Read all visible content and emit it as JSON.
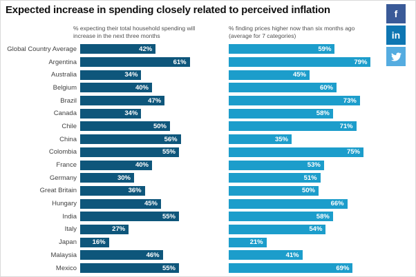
{
  "title": "Expected increase in spending closely related to perceived inflation",
  "left_chart": {
    "subtitle_line1": "% expecting their total household spending will",
    "subtitle_line2": "increase in the next three months"
  },
  "right_chart": {
    "subtitle_line1": "% finding prices higher now than six months ago",
    "subtitle_line2": "(average for 7 categories)"
  },
  "social": [
    {
      "name": "facebook",
      "label": "f",
      "color": "#3a5a98"
    },
    {
      "name": "linkedin",
      "label": "in",
      "color": "#0e76b2"
    },
    {
      "name": "twitter",
      "label": "",
      "color": "#55ace0"
    }
  ],
  "colors": {
    "left_bar": "#0e567b",
    "right_bar": "#1c9dcb",
    "value_text": "#ffffff"
  },
  "chart_data": {
    "type": "bar",
    "orientation": "horizontal",
    "title": "Expected increase in spending closely related to perceived inflation",
    "value_suffix": "%",
    "xlim": [
      0,
      100
    ],
    "grid": false,
    "legend_position": "none",
    "categories": [
      "Global Country Average",
      "Argentina",
      "Australia",
      "Belgium",
      "Brazil",
      "Canada",
      "Chile",
      "China",
      "Colombia",
      "France",
      "Germany",
      "Great Britain",
      "Hungary",
      "India",
      "Italy",
      "Japan",
      "Malaysia",
      "Mexico"
    ],
    "series": [
      {
        "name": "% expecting their total household spending will increase in the next three months",
        "color": "#0e567b",
        "values": [
          42,
          61,
          34,
          40,
          47,
          34,
          50,
          56,
          55,
          40,
          30,
          36,
          45,
          55,
          27,
          16,
          46,
          55
        ]
      },
      {
        "name": "% finding prices higher now than six months ago (average for 7 categories)",
        "color": "#1c9dcb",
        "values": [
          59,
          79,
          45,
          60,
          73,
          58,
          71,
          35,
          75,
          53,
          51,
          50,
          66,
          58,
          54,
          21,
          41,
          69
        ]
      }
    ]
  }
}
